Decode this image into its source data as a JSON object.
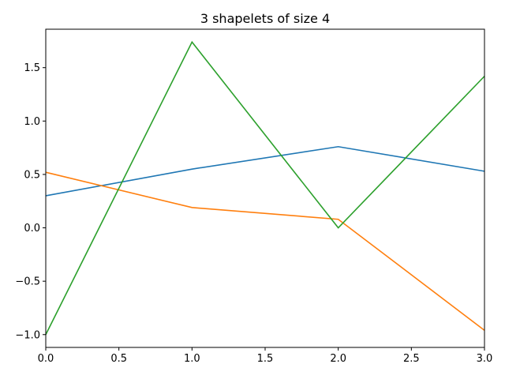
{
  "chart_data": {
    "type": "line",
    "title": "3 shapelets of size 4",
    "xlabel": "",
    "ylabel": "",
    "xlim": [
      0.0,
      3.0
    ],
    "ylim": [
      -1.12,
      1.86
    ],
    "grid": false,
    "legend": "none",
    "x": [
      0,
      1,
      2,
      3
    ],
    "xticks": [
      0.0,
      0.5,
      1.0,
      1.5,
      2.0,
      2.5,
      3.0
    ],
    "xtick_labels": [
      "0.0",
      "0.5",
      "1.0",
      "1.5",
      "2.0",
      "2.5",
      "3.0"
    ],
    "yticks": [
      -1.0,
      -0.5,
      0.0,
      0.5,
      1.0,
      1.5
    ],
    "ytick_labels": [
      "−1.0",
      "−0.5",
      "0.0",
      "0.5",
      "1.0",
      "1.5"
    ],
    "series": [
      {
        "color": "#1f77b4",
        "values": [
          0.3,
          0.55,
          0.76,
          0.53
        ]
      },
      {
        "color": "#ff7f0e",
        "values": [
          0.52,
          0.19,
          0.08,
          -0.96
        ]
      },
      {
        "color": "#2ca02c",
        "values": [
          -1.0,
          1.74,
          0.0,
          1.42
        ]
      }
    ]
  }
}
